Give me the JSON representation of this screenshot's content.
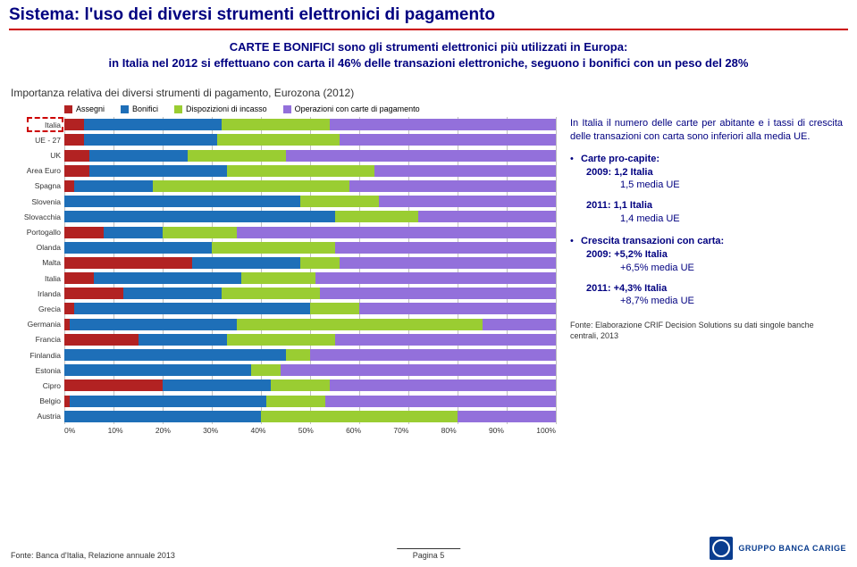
{
  "title": "Sistema: l'uso dei diversi strumenti elettronici di pagamento",
  "intro_line1": "CARTE E BONIFICI sono gli strumenti elettronici più utilizzati in Europa:",
  "intro_line2": "in Italia nel 2012 si effettuano con carta il 46% delle transazioni elettroniche, seguono i bonifici con un peso del 28%",
  "chart_title": "Importanza relativa dei diversi strumenti di pagamento, Eurozona (2012)",
  "legend": [
    {
      "label": "Assegni",
      "color": "#b22222"
    },
    {
      "label": "Bonifici",
      "color": "#1e6fb8"
    },
    {
      "label": "Dispozizioni di incasso",
      "color": "#9acd32"
    },
    {
      "label": "Operazioni con carte di pagamento",
      "color": "#9370db"
    }
  ],
  "x_ticks": [
    "0%",
    "10%",
    "20%",
    "30%",
    "40%",
    "50%",
    "60%",
    "70%",
    "80%",
    "90%",
    "100%"
  ],
  "bars": [
    {
      "label": "Italia",
      "values": [
        4,
        28,
        22,
        46
      ],
      "highlight": true
    },
    {
      "label": "UE - 27",
      "values": [
        4,
        27,
        25,
        44
      ]
    },
    {
      "label": "UK",
      "values": [
        5,
        20,
        20,
        55
      ]
    },
    {
      "label": "Area Euro",
      "values": [
        5,
        28,
        30,
        37
      ]
    },
    {
      "label": "Spagna",
      "values": [
        2,
        16,
        40,
        42
      ]
    },
    {
      "label": "Slovenia",
      "values": [
        0,
        48,
        16,
        36
      ]
    },
    {
      "label": "Slovacchia",
      "values": [
        0,
        55,
        17,
        28
      ]
    },
    {
      "label": "Portogallo",
      "values": [
        8,
        12,
        15,
        65
      ]
    },
    {
      "label": "Olanda",
      "values": [
        0,
        30,
        25,
        45
      ]
    },
    {
      "label": "Malta",
      "values": [
        26,
        22,
        8,
        44
      ]
    },
    {
      "label": "Italia",
      "values": [
        6,
        30,
        15,
        49
      ]
    },
    {
      "label": "Irlanda",
      "values": [
        12,
        20,
        20,
        48
      ]
    },
    {
      "label": "Grecia",
      "values": [
        2,
        48,
        10,
        40
      ]
    },
    {
      "label": "Germania",
      "values": [
        1,
        34,
        50,
        15
      ]
    },
    {
      "label": "Francia",
      "values": [
        15,
        18,
        22,
        45
      ]
    },
    {
      "label": "Finlandia",
      "values": [
        0,
        45,
        5,
        50
      ]
    },
    {
      "label": "Estonia",
      "values": [
        0,
        38,
        6,
        56
      ]
    },
    {
      "label": "Cipro",
      "values": [
        20,
        22,
        12,
        46
      ]
    },
    {
      "label": "Belgio",
      "values": [
        1,
        40,
        12,
        47
      ]
    },
    {
      "label": "Austria",
      "values": [
        0,
        40,
        40,
        20
      ]
    }
  ],
  "right": {
    "lead": "In Italia il numero delle carte per abitante e i tassi di crescita delle transazioni con carta sono inferiori alla media UE.",
    "bullet1_title": "Carte pro-capite:",
    "bullet1_a": "2009: 1,2 Italia",
    "bullet1_b": "1,5 media UE",
    "bullet1_c": "2011: 1,1 Italia",
    "bullet1_d": "1,4 media UE",
    "bullet2_title": "Crescita transazioni con carta:",
    "bullet2_a": "2009: +5,2% Italia",
    "bullet2_b": "+6,5% media UE",
    "bullet2_c": "2011: +4,3% Italia",
    "bullet2_d": "+8,7% media UE",
    "source": "Fonte: Elaborazione CRIF Decision Solutions su dati singole banche centrali, 2013"
  },
  "footer": {
    "source": "Fonte: Banca d'Italia, Relazione annuale 2013",
    "page": "Pagina 5",
    "logo": "GRUPPO BANCA CARIGE"
  }
}
